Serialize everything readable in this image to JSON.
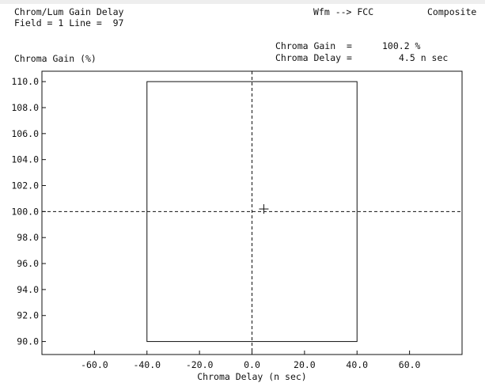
{
  "header": {
    "title": "Chrom/Lum Gain Delay",
    "field_line": "Field = 1 Line =  97",
    "mode": "Wfm --> FCC",
    "signal": "Composite"
  },
  "readout": {
    "gain_label": "Chroma Gain  =",
    "gain_value": "100.2 %",
    "delay_label": "Chroma Delay =",
    "delay_value": "4.5 n sec"
  },
  "colors": {
    "foreground": "#111111",
    "background": "#ffffff"
  },
  "chart_data": {
    "type": "scatter",
    "ylabel": "Chroma Gain (%)",
    "xlabel": "Chroma Delay (n sec)",
    "xlim": [
      -80,
      80
    ],
    "ylim": [
      89,
      110.8
    ],
    "x_ticks": [
      -60,
      -40,
      -20,
      0,
      20,
      40,
      60
    ],
    "x_tick_labels": [
      "-60.0",
      "-40.0",
      "-20.0",
      "0.0",
      "20.0",
      "40.0",
      "60.0"
    ],
    "y_ticks": [
      110,
      108,
      106,
      104,
      102,
      100,
      98,
      96,
      94,
      92,
      90
    ],
    "y_tick_labels": [
      "110.0",
      "108.0",
      "106.0",
      "104.0",
      "102.0",
      "100.0",
      "98.0",
      "96.0",
      "94.0",
      "92.0",
      "90.0"
    ],
    "limit_box": {
      "x": [
        -40,
        40
      ],
      "y": [
        90,
        110
      ]
    },
    "reference": {
      "x": 0,
      "y": 100
    },
    "point": {
      "x": 4.5,
      "y": 100.2
    },
    "grid": false
  }
}
